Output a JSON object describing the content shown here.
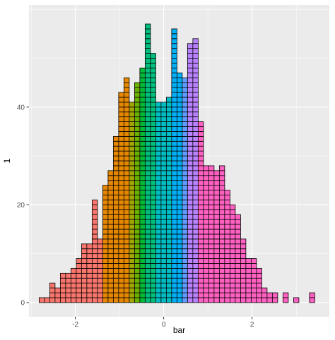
{
  "chart_data": {
    "type": "bar",
    "xlabel": "bar",
    "ylabel": "1",
    "x_ticks": [
      -2,
      0,
      2
    ],
    "y_ticks": [
      0,
      20,
      40
    ],
    "xlim": [
      -3.05,
      3.75
    ],
    "ylim": [
      -2.9,
      60.9
    ],
    "grid": true,
    "background": "#EBEBEB",
    "grid_color": "#FFFFFF",
    "bin_width": 0.12,
    "bins": [
      {
        "x": -2.76,
        "count": 1,
        "color": "#F8766D"
      },
      {
        "x": -2.64,
        "count": 1,
        "color": "#F8766D"
      },
      {
        "x": -2.52,
        "count": 4,
        "color": "#F8766D"
      },
      {
        "x": -2.4,
        "count": 3,
        "color": "#F8766D"
      },
      {
        "x": -2.28,
        "count": 6,
        "color": "#F8766D"
      },
      {
        "x": -2.16,
        "count": 6,
        "color": "#F8766D"
      },
      {
        "x": -2.04,
        "count": 7,
        "color": "#F8766D"
      },
      {
        "x": -1.92,
        "count": 9,
        "color": "#F8766D"
      },
      {
        "x": -1.8,
        "count": 12,
        "color": "#F8766D"
      },
      {
        "x": -1.68,
        "count": 12,
        "color": "#F8766D"
      },
      {
        "x": -1.56,
        "count": 21,
        "color": "#F8766D"
      },
      {
        "x": -1.44,
        "count": 13,
        "color": "#F8766D"
      },
      {
        "x": -1.32,
        "count": 24,
        "color": "#E58700"
      },
      {
        "x": -1.2,
        "count": 27,
        "color": "#E58700"
      },
      {
        "x": -1.08,
        "count": 34,
        "color": "#E58700"
      },
      {
        "x": -0.96,
        "count": 43,
        "color": "#E58700"
      },
      {
        "x": -0.84,
        "count": 46,
        "color": "#E58700"
      },
      {
        "x": -0.72,
        "count": 41,
        "color": "#A3A500"
      },
      {
        "x": -0.6,
        "count": 45,
        "color": "#6BB100"
      },
      {
        "x": -0.48,
        "count": 48,
        "color": "#00BA38"
      },
      {
        "x": -0.36,
        "count": 57,
        "color": "#00BF7D"
      },
      {
        "x": -0.24,
        "count": 51,
        "color": "#00BF7D"
      },
      {
        "x": -0.12,
        "count": 41,
        "color": "#00BFC4"
      },
      {
        "x": 0.0,
        "count": 41,
        "color": "#00BFC4"
      },
      {
        "x": 0.12,
        "count": 42,
        "color": "#00BFC4"
      },
      {
        "x": 0.24,
        "count": 56,
        "color": "#00B0F6"
      },
      {
        "x": 0.36,
        "count": 47,
        "color": "#00B0F6"
      },
      {
        "x": 0.48,
        "count": 46,
        "color": "#619CFF"
      },
      {
        "x": 0.6,
        "count": 53,
        "color": "#B983FF"
      },
      {
        "x": 0.72,
        "count": 54,
        "color": "#B983FF"
      },
      {
        "x": 0.84,
        "count": 37,
        "color": "#FF61C3"
      },
      {
        "x": 0.96,
        "count": 28,
        "color": "#FF61C3"
      },
      {
        "x": 1.08,
        "count": 28,
        "color": "#FF61C3"
      },
      {
        "x": 1.2,
        "count": 27,
        "color": "#FF61C3"
      },
      {
        "x": 1.32,
        "count": 28,
        "color": "#FF61C3"
      },
      {
        "x": 1.44,
        "count": 23,
        "color": "#FF61C3"
      },
      {
        "x": 1.56,
        "count": 20,
        "color": "#FF61C3"
      },
      {
        "x": 1.68,
        "count": 18,
        "color": "#FF61C3"
      },
      {
        "x": 1.8,
        "count": 13,
        "color": "#FF61C3"
      },
      {
        "x": 1.92,
        "count": 9,
        "color": "#FF61C3"
      },
      {
        "x": 2.04,
        "count": 9,
        "color": "#FF61C3"
      },
      {
        "x": 2.16,
        "count": 7,
        "color": "#FF61C3"
      },
      {
        "x": 2.28,
        "count": 3,
        "color": "#FF61C3"
      },
      {
        "x": 2.4,
        "count": 2,
        "color": "#FF61C3"
      },
      {
        "x": 2.52,
        "count": 2,
        "color": "#FF61C3"
      },
      {
        "x": 2.76,
        "count": 2,
        "color": "#FF61C3"
      },
      {
        "x": 3.0,
        "count": 1,
        "color": "#FF61C3"
      },
      {
        "x": 3.36,
        "count": 2,
        "color": "#FF61C3"
      }
    ]
  }
}
